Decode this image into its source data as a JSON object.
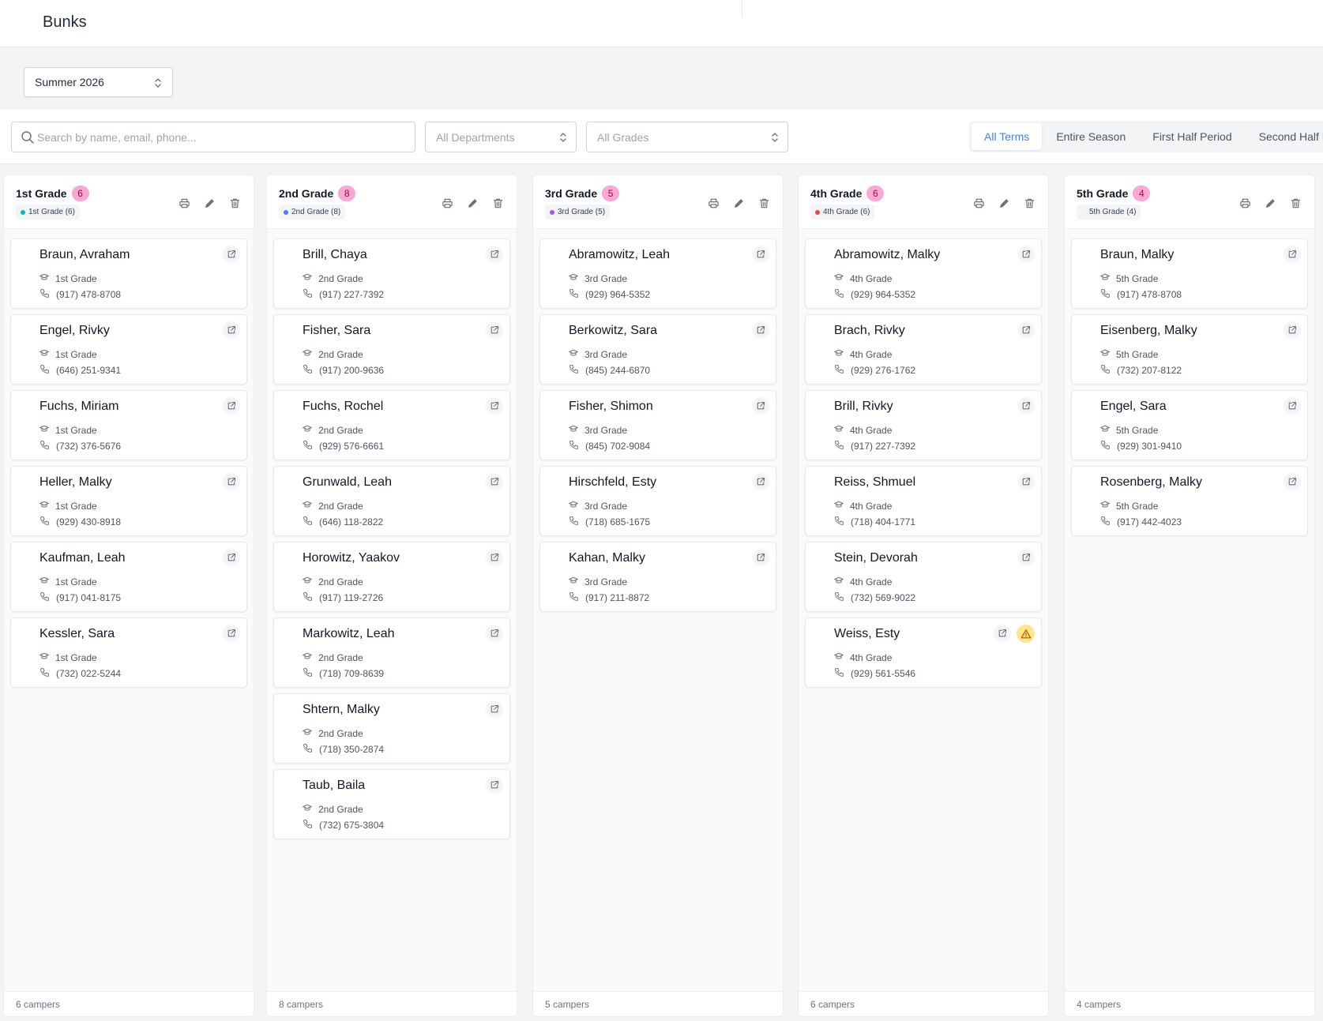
{
  "header": {
    "title": "Bunks"
  },
  "season_select": {
    "value": "Summer 2026"
  },
  "filters": {
    "search_placeholder": "Search by name, email, phone...",
    "department": "All Departments",
    "grade": "All Grades",
    "terms": [
      "All Terms",
      "Entire Season",
      "First Half Period",
      "Second Half Period"
    ],
    "active_term": "All Terms"
  },
  "columns": [
    {
      "title": "1st Grade",
      "count": "6",
      "chip": "1st Grade (6)",
      "chip_color": "#06b6d4",
      "footer": "6 campers",
      "campers": [
        {
          "name": "Braun, Avraham",
          "grade": "1st Grade",
          "phone": "(917) 478-8708"
        },
        {
          "name": "Engel, Rivky",
          "grade": "1st Grade",
          "phone": "(646) 251-9341"
        },
        {
          "name": "Fuchs, Miriam",
          "grade": "1st Grade",
          "phone": "(732) 376-5676"
        },
        {
          "name": "Heller, Malky",
          "grade": "1st Grade",
          "phone": "(929) 430-8918"
        },
        {
          "name": "Kaufman, Leah",
          "grade": "1st Grade",
          "phone": "(917) 041-8175"
        },
        {
          "name": "Kessler, Sara",
          "grade": "1st Grade",
          "phone": "(732) 022-5244"
        }
      ]
    },
    {
      "title": "2nd Grade",
      "count": "8",
      "chip": "2nd Grade (8)",
      "chip_color": "#3b82f6",
      "footer": "8 campers",
      "campers": [
        {
          "name": "Brill, Chaya",
          "grade": "2nd Grade",
          "phone": "(917) 227-7392"
        },
        {
          "name": "Fisher, Sara",
          "grade": "2nd Grade",
          "phone": "(917) 200-9636"
        },
        {
          "name": "Fuchs, Rochel",
          "grade": "2nd Grade",
          "phone": "(929) 576-6661"
        },
        {
          "name": "Grunwald, Leah",
          "grade": "2nd Grade",
          "phone": "(646) 118-2822"
        },
        {
          "name": "Horowitz, Yaakov",
          "grade": "2nd Grade",
          "phone": "(917) 119-2726"
        },
        {
          "name": "Markowitz, Leah",
          "grade": "2nd Grade",
          "phone": "(718) 709-8639"
        },
        {
          "name": "Shtern, Malky",
          "grade": "2nd Grade",
          "phone": "(718) 350-2874"
        },
        {
          "name": "Taub, Baila",
          "grade": "2nd Grade",
          "phone": "(732) 675-3804"
        }
      ]
    },
    {
      "title": "3rd Grade",
      "count": "5",
      "chip": "3rd Grade (5)",
      "chip_color": "#a855f7",
      "footer": "5 campers",
      "campers": [
        {
          "name": "Abramowitz, Leah",
          "grade": "3rd Grade",
          "phone": "(929) 964-5352"
        },
        {
          "name": "Berkowitz, Sara",
          "grade": "3rd Grade",
          "phone": "(845) 244-6870"
        },
        {
          "name": "Fisher, Shimon",
          "grade": "3rd Grade",
          "phone": "(845) 702-9084"
        },
        {
          "name": "Hirschfeld, Esty",
          "grade": "3rd Grade",
          "phone": "(718) 685-1675"
        },
        {
          "name": "Kahan, Malky",
          "grade": "3rd Grade",
          "phone": "(917) 211-8872"
        }
      ]
    },
    {
      "title": "4th Grade",
      "count": "6",
      "chip": "4th Grade (6)",
      "chip_color": "#ef4444",
      "footer": "6 campers",
      "campers": [
        {
          "name": "Abramowitz, Malky",
          "grade": "4th Grade",
          "phone": "(929) 964-5352"
        },
        {
          "name": "Brach, Rivky",
          "grade": "4th Grade",
          "phone": "(929) 276-1762"
        },
        {
          "name": "Brill, Rivky",
          "grade": "4th Grade",
          "phone": "(917) 227-7392"
        },
        {
          "name": "Reiss, Shmuel",
          "grade": "4th Grade",
          "phone": "(718) 404-1771"
        },
        {
          "name": "Stein, Devorah",
          "grade": "4th Grade",
          "phone": "(732) 569-9022"
        },
        {
          "name": "Weiss, Esty",
          "grade": "4th Grade",
          "phone": "(929) 561-5546",
          "warning": true
        }
      ]
    },
    {
      "title": "5th Grade",
      "count": "4",
      "chip": "5th Grade (4)",
      "chip_color": "#f3f4f6",
      "footer": "4 campers",
      "campers": [
        {
          "name": "Braun, Malky",
          "grade": "5th Grade",
          "phone": "(917) 478-8708"
        },
        {
          "name": "Eisenberg, Malky",
          "grade": "5th Grade",
          "phone": "(732) 207-8122"
        },
        {
          "name": "Engel, Sara",
          "grade": "5th Grade",
          "phone": "(929) 301-9410"
        },
        {
          "name": "Rosenberg, Malky",
          "grade": "5th Grade",
          "phone": "(917) 442-4023"
        }
      ]
    }
  ]
}
